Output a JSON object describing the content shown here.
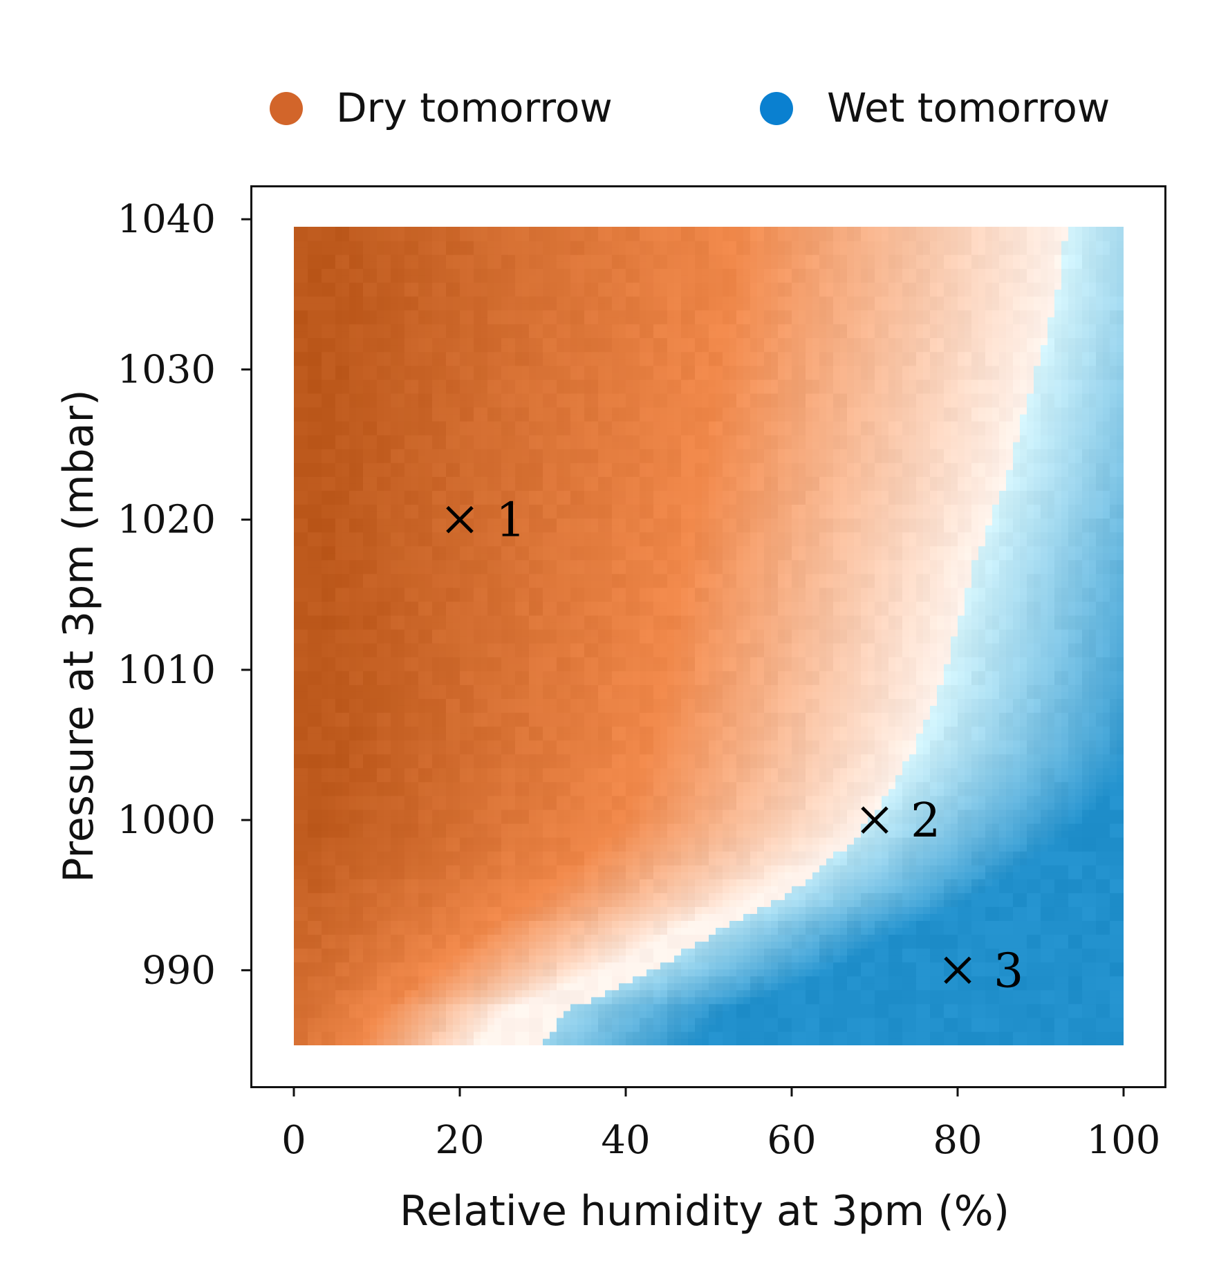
{
  "chart_data": {
    "type": "heatmap",
    "title": "",
    "xlabel": "Relative humidity at 3pm (%)",
    "ylabel": "Pressure at 3pm (mbar)",
    "xlim": [
      -5,
      105.5
    ],
    "ylim": [
      983.5,
      1042.3
    ],
    "grid": false,
    "x_ticks": [
      "0",
      "20",
      "40",
      "60",
      "80",
      "100"
    ],
    "y_ticks": [
      "990",
      "1000",
      "1010",
      "1020",
      "1030",
      "1040"
    ],
    "heatmap_extent": {
      "x": [
        0,
        100
      ],
      "y": [
        985,
        1039.5
      ]
    },
    "legend": {
      "placement": "top",
      "entries": [
        {
          "label": "Dry tomorrow",
          "color": "#d2652a"
        },
        {
          "label": "Wet tomorrow",
          "color": "#0a80d0"
        }
      ]
    },
    "colors": {
      "dry_dark": "#bd591c",
      "dry_mid": "#f0884a",
      "neutral": "#fff3ec",
      "wet_light": "#d4f4fb",
      "wet_dark": "#2190cc"
    },
    "boundary": {
      "description_points_x": [
        30,
        33,
        38,
        45,
        52,
        58,
        63,
        68,
        72,
        75,
        78,
        80,
        82,
        84,
        86,
        88,
        90,
        92,
        93
      ],
      "description_points_y": [
        985,
        987.5,
        988.5,
        990.5,
        993,
        994.5,
        996.5,
        999,
        1002,
        1005,
        1009,
        1013,
        1017,
        1020,
        1023,
        1027,
        1031,
        1035,
        1039
      ]
    },
    "points": [
      {
        "x": 20,
        "y": 1020,
        "label": "1"
      },
      {
        "x": 70,
        "y": 1000,
        "label": "2"
      },
      {
        "x": 80,
        "y": 990,
        "label": "3"
      }
    ]
  }
}
